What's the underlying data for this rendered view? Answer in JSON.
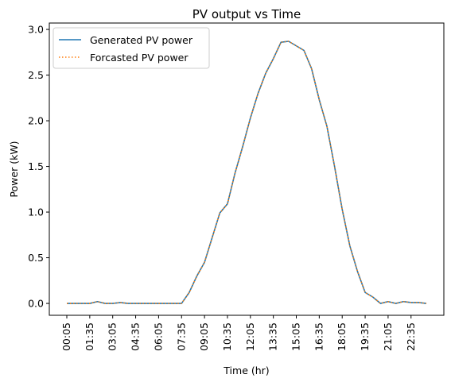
{
  "chart_data": {
    "type": "line",
    "title": "PV output vs Time",
    "xlabel": "Time (hr)",
    "ylabel": "Power (kW)",
    "ylim": [
      -0.13,
      3.07
    ],
    "yticks": [
      "0.0",
      "0.5",
      "1.0",
      "1.5",
      "2.0",
      "2.5",
      "3.0"
    ],
    "xtick_labels": [
      "00:05",
      "01:35",
      "03:05",
      "04:35",
      "06:05",
      "07:35",
      "09:05",
      "10:35",
      "12:05",
      "13:35",
      "15:05",
      "16:35",
      "18:05",
      "19:35",
      "21:05",
      "22:35"
    ],
    "x": [
      "00:05",
      "00:35",
      "01:05",
      "01:35",
      "02:05",
      "02:35",
      "03:05",
      "03:35",
      "04:05",
      "04:35",
      "05:05",
      "05:35",
      "06:05",
      "06:35",
      "07:05",
      "07:35",
      "08:05",
      "08:35",
      "09:05",
      "09:35",
      "10:05",
      "10:35",
      "11:05",
      "11:35",
      "12:05",
      "12:35",
      "13:05",
      "13:35",
      "14:05",
      "14:35",
      "15:05",
      "15:35",
      "16:05",
      "16:35",
      "17:05",
      "17:35",
      "18:05",
      "18:35",
      "19:05",
      "19:35",
      "20:05",
      "20:35",
      "21:05",
      "21:35",
      "22:05",
      "22:35",
      "23:05",
      "23:35"
    ],
    "series": [
      {
        "name": "Generated PV power",
        "color": "#1f77b4",
        "style": "solid",
        "values": [
          0.0,
          0.0,
          0.0,
          0.0,
          0.02,
          0.0,
          0.0,
          0.01,
          0.0,
          0.0,
          0.0,
          0.0,
          0.0,
          0.0,
          0.0,
          0.0,
          0.12,
          0.3,
          0.45,
          0.72,
          0.99,
          1.09,
          1.43,
          1.72,
          2.03,
          2.3,
          2.52,
          2.68,
          2.86,
          2.87,
          2.82,
          2.77,
          2.57,
          2.23,
          1.94,
          1.5,
          1.03,
          0.63,
          0.35,
          0.12,
          0.07,
          0.0,
          0.02,
          0.0,
          0.02,
          0.01,
          0.01,
          0.0
        ]
      },
      {
        "name": "Forcasted PV power",
        "color": "#ff7f0e",
        "style": "dotted",
        "values": [
          0.0,
          0.0,
          0.0,
          0.0,
          0.02,
          0.0,
          0.0,
          0.01,
          0.0,
          0.0,
          0.0,
          0.0,
          0.0,
          0.0,
          0.0,
          0.0,
          0.12,
          0.3,
          0.45,
          0.72,
          0.99,
          1.09,
          1.43,
          1.72,
          2.03,
          2.3,
          2.52,
          2.68,
          2.86,
          2.87,
          2.82,
          2.77,
          2.57,
          2.23,
          1.94,
          1.5,
          1.03,
          0.63,
          0.35,
          0.12,
          0.07,
          0.0,
          0.02,
          0.0,
          0.02,
          0.01,
          0.01,
          0.0
        ]
      }
    ],
    "grid": false,
    "legend": "top-left"
  }
}
